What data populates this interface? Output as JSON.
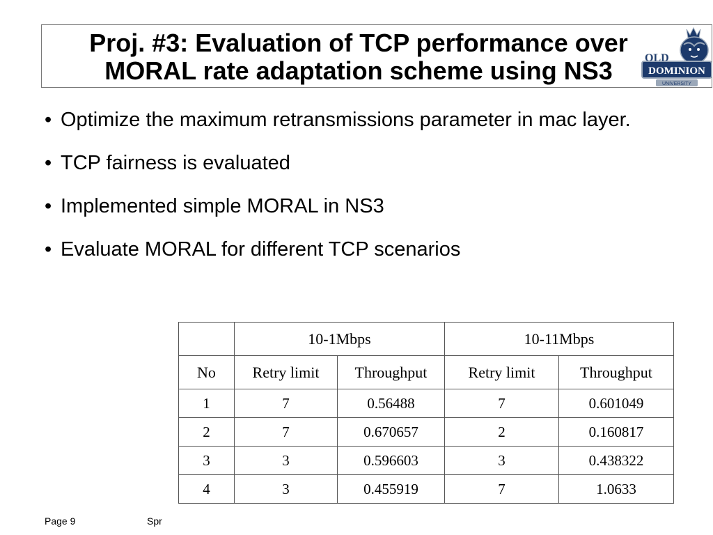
{
  "title": {
    "line1": "Proj. #3: Evaluation of TCP performance over",
    "line2": "MORAL rate adaptation scheme using NS3"
  },
  "logo": {
    "icon": "old-dominion-monarch-logo",
    "text_top": "OLD",
    "text_main": "DOMINION",
    "text_sub": "UNIVERSITY"
  },
  "bullets": [
    "Optimize the maximum retransmissions parameter in mac layer.",
    "TCP fairness is evaluated",
    "Implemented simple MORAL in NS3",
    "Evaluate MORAL for different TCP scenarios"
  ],
  "table": {
    "group_headers": [
      "10-1Mbps",
      "10-11Mbps"
    ],
    "columns": [
      "No",
      "Retry limit",
      "Throughput",
      "Retry limit",
      "Throughput"
    ],
    "rows": [
      [
        "1",
        "7",
        "0.56488",
        "7",
        "0.601049"
      ],
      [
        "2",
        "7",
        "0.670657",
        "2",
        "0.160817"
      ],
      [
        "3",
        "3",
        "0.596603",
        "3",
        "0.438322"
      ],
      [
        "4",
        "3",
        "0.455919",
        "7",
        "1.0633"
      ]
    ]
  },
  "footer": {
    "page": "Page 9",
    "text": "Spr"
  },
  "colors": {
    "logo_navy": "#1d3a6b",
    "logo_silver": "#9aa7b8",
    "table_border": "#555555"
  }
}
